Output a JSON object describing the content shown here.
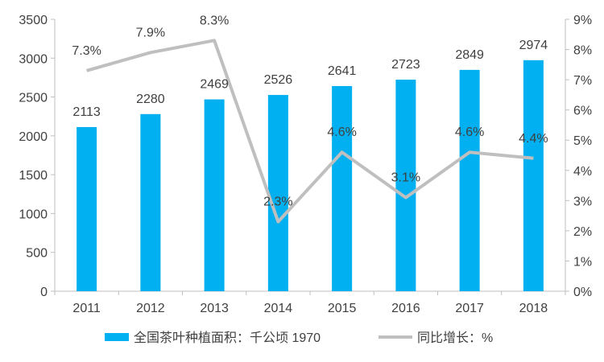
{
  "chart_data": {
    "type": "bar",
    "categories": [
      "2011",
      "2012",
      "2013",
      "2014",
      "2015",
      "2016",
      "2017",
      "2018"
    ],
    "series": [
      {
        "name": "全国茶叶种植面积：千公顷 1970",
        "type": "bar",
        "axis": "left",
        "values": [
          2113,
          2280,
          2469,
          2526,
          2641,
          2723,
          2849,
          2974
        ],
        "labels": [
          "2113",
          "2280",
          "2469",
          "2526",
          "2641",
          "2723",
          "2849",
          "2974"
        ]
      },
      {
        "name": "同比增长：%",
        "type": "line",
        "axis": "right",
        "values": [
          7.3,
          7.9,
          8.3,
          2.3,
          4.6,
          3.1,
          4.6,
          4.4
        ],
        "labels": [
          "7.3%",
          "7.9%",
          "8.3%",
          "2.3%",
          "4.6%",
          "3.1%",
          "4.6%",
          "4.4%"
        ]
      }
    ],
    "y_left": {
      "range": [
        0,
        3500
      ],
      "ticks": [
        "0",
        "500",
        "1000",
        "1500",
        "2000",
        "2500",
        "3000",
        "3500"
      ]
    },
    "y_right": {
      "range": [
        0,
        9
      ],
      "ticks": [
        "0%",
        "1%",
        "2%",
        "3%",
        "4%",
        "5%",
        "6%",
        "7%",
        "8%",
        "9%"
      ]
    },
    "grid": false,
    "legend_position": "bottom",
    "colors": {
      "bar": "#00B0F0",
      "line": "#BFBFBF",
      "axis": "#BFBFBF",
      "text": "#404040"
    }
  }
}
